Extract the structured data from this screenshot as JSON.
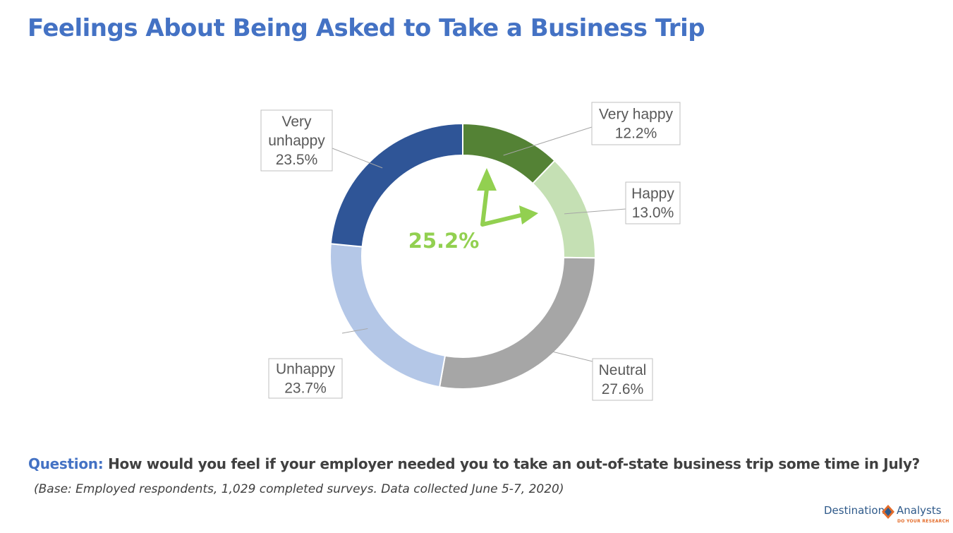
{
  "title": "Feelings About Being Asked to Take a Business Trip",
  "chart_data": {
    "type": "pie",
    "variant": "donut",
    "categories": [
      "Very happy",
      "Happy",
      "Neutral",
      "Unhappy",
      "Very unhappy"
    ],
    "values": [
      12.2,
      13.0,
      27.6,
      23.7,
      23.5
    ],
    "labels": [
      "12.2%",
      "13.0%",
      "27.6%",
      "23.7%",
      "23.5%"
    ],
    "colors": [
      "#548235",
      "#c5e0b4",
      "#a6a6a6",
      "#b4c7e7",
      "#2f5597"
    ],
    "center_annotation": "25.2%",
    "center_annotation_color": "#92d050",
    "legend": "none"
  },
  "footer": {
    "question_label": "Question:",
    "question_text": "How would you feel if your employer needed you to take an out-of-state business trip some time in July?",
    "base_note": "(Base: Employed respondents, 1,029 completed surveys. Data collected June 5-7, 2020)"
  },
  "logo": {
    "left": "Destination",
    "right": "Analysts",
    "tagline": "DO YOUR RESEARCH",
    "icon": "diamond-logo-icon"
  }
}
